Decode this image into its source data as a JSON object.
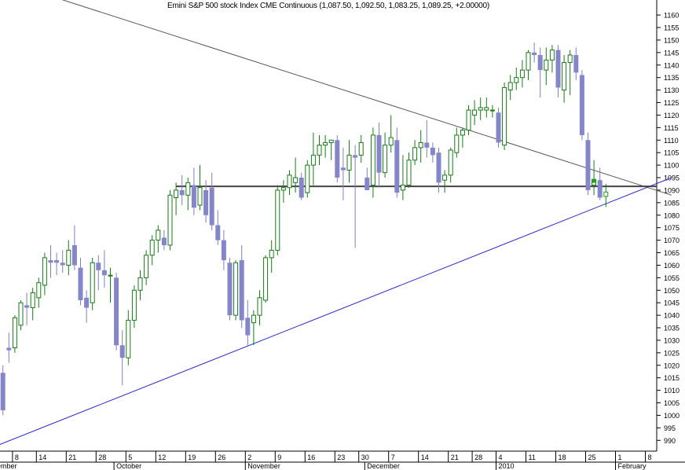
{
  "chart_data": {
    "type": "candlestick",
    "title": "Emini S&P 500 stock Index CME Continuous (1,087.50, 1,092.50, 1,083.25, 1,089.25, +2.00000)",
    "ylim": [
      986,
      1166
    ],
    "y_ticks": [
      990,
      995,
      1000,
      1005,
      1010,
      1015,
      1020,
      1025,
      1030,
      1035,
      1040,
      1045,
      1050,
      1055,
      1060,
      1065,
      1070,
      1075,
      1080,
      1085,
      1090,
      1095,
      1100,
      1105,
      1110,
      1115,
      1120,
      1125,
      1130,
      1135,
      1140,
      1145,
      1150,
      1155,
      1160
    ],
    "x_tick_labels": [
      {
        "label": "8",
        "i": 2
      },
      {
        "label": "14",
        "i": 6
      },
      {
        "label": "21",
        "i": 11
      },
      {
        "label": "28",
        "i": 16
      },
      {
        "label": "5",
        "i": 21
      },
      {
        "label": "12",
        "i": 26
      },
      {
        "label": "19",
        "i": 31
      },
      {
        "label": "26",
        "i": 36
      },
      {
        "label": "2",
        "i": 41
      },
      {
        "label": "9",
        "i": 46
      },
      {
        "label": "16",
        "i": 51
      },
      {
        "label": "23",
        "i": 56
      },
      {
        "label": "30",
        "i": 60
      },
      {
        "label": "7",
        "i": 65
      },
      {
        "label": "14",
        "i": 70
      },
      {
        "label": "21",
        "i": 75
      },
      {
        "label": "28",
        "i": 79
      },
      {
        "label": "4",
        "i": 83
      },
      {
        "label": "11",
        "i": 88
      },
      {
        "label": "18",
        "i": 93
      },
      {
        "label": "25",
        "i": 98
      },
      {
        "label": "1",
        "i": 103
      },
      {
        "label": "8",
        "i": 108
      }
    ],
    "month_labels": [
      {
        "label": "ember",
        "i": -1
      },
      {
        "label": "October",
        "i": 19
      },
      {
        "label": "November",
        "i": 41
      },
      {
        "label": "December",
        "i": 61
      },
      {
        "label": "2010",
        "i": 83
      },
      {
        "label": "February",
        "i": 103
      }
    ],
    "candles": [
      {
        "o": 1017,
        "h": 1020,
        "l": 1000,
        "c": 1002
      },
      {
        "o": 1027,
        "h": 1033,
        "l": 1021,
        "c": 1026
      },
      {
        "o": 1027,
        "h": 1040,
        "l": 1025,
        "c": 1039
      },
      {
        "o": 1036,
        "h": 1046,
        "l": 1034,
        "c": 1045
      },
      {
        "o": 1044,
        "h": 1049,
        "l": 1036,
        "c": 1043
      },
      {
        "o": 1043,
        "h": 1051,
        "l": 1038,
        "c": 1049
      },
      {
        "o": 1047,
        "h": 1055,
        "l": 1043,
        "c": 1053
      },
      {
        "o": 1052,
        "h": 1065,
        "l": 1048,
        "c": 1063
      },
      {
        "o": 1062,
        "h": 1068,
        "l": 1055,
        "c": 1061
      },
      {
        "o": 1062,
        "h": 1065,
        "l": 1056,
        "c": 1061
      },
      {
        "o": 1061,
        "h": 1066,
        "l": 1057,
        "c": 1060
      },
      {
        "o": 1060,
        "h": 1070,
        "l": 1056,
        "c": 1066
      },
      {
        "o": 1068,
        "h": 1076,
        "l": 1058,
        "c": 1060
      },
      {
        "o": 1059,
        "h": 1063,
        "l": 1044,
        "c": 1046
      },
      {
        "o": 1047,
        "h": 1050,
        "l": 1037,
        "c": 1043
      },
      {
        "o": 1045,
        "h": 1063,
        "l": 1042,
        "c": 1061
      },
      {
        "o": 1061,
        "h": 1064,
        "l": 1050,
        "c": 1058
      },
      {
        "o": 1058,
        "h": 1066,
        "l": 1051,
        "c": 1056
      },
      {
        "o": 1056,
        "h": 1059,
        "l": 1045,
        "c": 1056
      },
      {
        "o": 1055,
        "h": 1057,
        "l": 1026,
        "c": 1028
      },
      {
        "o": 1028,
        "h": 1034,
        "l": 1012,
        "c": 1023
      },
      {
        "o": 1023,
        "h": 1042,
        "l": 1020,
        "c": 1038
      },
      {
        "o": 1038,
        "h": 1052,
        "l": 1035,
        "c": 1050
      },
      {
        "o": 1050,
        "h": 1058,
        "l": 1046,
        "c": 1055
      },
      {
        "o": 1055,
        "h": 1066,
        "l": 1052,
        "c": 1064
      },
      {
        "o": 1064,
        "h": 1072,
        "l": 1060,
        "c": 1070
      },
      {
        "o": 1070,
        "h": 1076,
        "l": 1065,
        "c": 1074
      },
      {
        "o": 1071,
        "h": 1074,
        "l": 1066,
        "c": 1068
      },
      {
        "o": 1068,
        "h": 1090,
        "l": 1066,
        "c": 1088
      },
      {
        "o": 1087,
        "h": 1093,
        "l": 1080,
        "c": 1090
      },
      {
        "o": 1090,
        "h": 1096,
        "l": 1084,
        "c": 1088
      },
      {
        "o": 1088,
        "h": 1095,
        "l": 1082,
        "c": 1093
      },
      {
        "o": 1092,
        "h": 1099,
        "l": 1080,
        "c": 1083
      },
      {
        "o": 1084,
        "h": 1100,
        "l": 1082,
        "c": 1091
      },
      {
        "o": 1090,
        "h": 1094,
        "l": 1077,
        "c": 1080
      },
      {
        "o": 1091,
        "h": 1097,
        "l": 1074,
        "c": 1076
      },
      {
        "o": 1076,
        "h": 1082,
        "l": 1068,
        "c": 1070
      },
      {
        "o": 1070,
        "h": 1074,
        "l": 1058,
        "c": 1062
      },
      {
        "o": 1061,
        "h": 1063,
        "l": 1038,
        "c": 1040
      },
      {
        "o": 1040,
        "h": 1062,
        "l": 1038,
        "c": 1061
      },
      {
        "o": 1062,
        "h": 1068,
        "l": 1035,
        "c": 1038
      },
      {
        "o": 1039,
        "h": 1046,
        "l": 1028,
        "c": 1032
      },
      {
        "o": 1037,
        "h": 1042,
        "l": 1028,
        "c": 1040
      },
      {
        "o": 1040,
        "h": 1050,
        "l": 1036,
        "c": 1047
      },
      {
        "o": 1046,
        "h": 1064,
        "l": 1045,
        "c": 1063
      },
      {
        "o": 1063,
        "h": 1070,
        "l": 1057,
        "c": 1066
      },
      {
        "o": 1066,
        "h": 1092,
        "l": 1064,
        "c": 1090
      },
      {
        "o": 1090,
        "h": 1094,
        "l": 1085,
        "c": 1091
      },
      {
        "o": 1091,
        "h": 1098,
        "l": 1088,
        "c": 1096
      },
      {
        "o": 1093,
        "h": 1103,
        "l": 1089,
        "c": 1095
      },
      {
        "o": 1095,
        "h": 1097,
        "l": 1086,
        "c": 1087
      },
      {
        "o": 1089,
        "h": 1102,
        "l": 1087,
        "c": 1100
      },
      {
        "o": 1100,
        "h": 1113,
        "l": 1092,
        "c": 1104
      },
      {
        "o": 1104,
        "h": 1112,
        "l": 1100,
        "c": 1108
      },
      {
        "o": 1108,
        "h": 1112,
        "l": 1103,
        "c": 1109
      },
      {
        "o": 1109,
        "h": 1110,
        "l": 1102,
        "c": 1110
      },
      {
        "o": 1110,
        "h": 1112,
        "l": 1093,
        "c": 1095
      },
      {
        "o": 1099,
        "h": 1107,
        "l": 1086,
        "c": 1098
      },
      {
        "o": 1098,
        "h": 1110,
        "l": 1093,
        "c": 1104
      },
      {
        "o": 1104,
        "h": 1108,
        "l": 1067,
        "c": 1103
      },
      {
        "o": 1104,
        "h": 1112,
        "l": 1101,
        "c": 1109
      },
      {
        "o": 1095,
        "h": 1099,
        "l": 1090,
        "c": 1090
      },
      {
        "o": 1092,
        "h": 1115,
        "l": 1087,
        "c": 1112
      },
      {
        "o": 1112,
        "h": 1117,
        "l": 1091,
        "c": 1097
      },
      {
        "o": 1097,
        "h": 1113,
        "l": 1095,
        "c": 1108
      },
      {
        "o": 1108,
        "h": 1120,
        "l": 1105,
        "c": 1111
      },
      {
        "o": 1110,
        "h": 1115,
        "l": 1087,
        "c": 1089
      },
      {
        "o": 1090,
        "h": 1104,
        "l": 1086,
        "c": 1092
      },
      {
        "o": 1092,
        "h": 1105,
        "l": 1091,
        "c": 1102
      },
      {
        "o": 1102,
        "h": 1110,
        "l": 1100,
        "c": 1107
      },
      {
        "o": 1107,
        "h": 1114,
        "l": 1101,
        "c": 1109
      },
      {
        "o": 1109,
        "h": 1118,
        "l": 1103,
        "c": 1107
      },
      {
        "o": 1107,
        "h": 1109,
        "l": 1101,
        "c": 1104
      },
      {
        "o": 1105,
        "h": 1107,
        "l": 1089,
        "c": 1093
      },
      {
        "o": 1094,
        "h": 1098,
        "l": 1089,
        "c": 1096
      },
      {
        "o": 1096,
        "h": 1107,
        "l": 1093,
        "c": 1106
      },
      {
        "o": 1105,
        "h": 1115,
        "l": 1103,
        "c": 1112
      },
      {
        "o": 1112,
        "h": 1115,
        "l": 1107,
        "c": 1114
      },
      {
        "o": 1114,
        "h": 1124,
        "l": 1112,
        "c": 1122
      },
      {
        "o": 1120,
        "h": 1126,
        "l": 1116,
        "c": 1122
      },
      {
        "o": 1122,
        "h": 1127,
        "l": 1118,
        "c": 1123
      },
      {
        "o": 1122,
        "h": 1127,
        "l": 1119,
        "c": 1123
      },
      {
        "o": 1122,
        "h": 1124,
        "l": 1119,
        "c": 1122
      },
      {
        "o": 1121,
        "h": 1123,
        "l": 1107,
        "c": 1109
      },
      {
        "o": 1108,
        "h": 1133,
        "l": 1106,
        "c": 1131
      },
      {
        "o": 1130,
        "h": 1136,
        "l": 1126,
        "c": 1133
      },
      {
        "o": 1133,
        "h": 1139,
        "l": 1130,
        "c": 1135
      },
      {
        "o": 1135,
        "h": 1142,
        "l": 1131,
        "c": 1138
      },
      {
        "o": 1138,
        "h": 1146,
        "l": 1134,
        "c": 1145
      },
      {
        "o": 1145,
        "h": 1149,
        "l": 1141,
        "c": 1144
      },
      {
        "o": 1144,
        "h": 1147,
        "l": 1127,
        "c": 1138
      },
      {
        "o": 1138,
        "h": 1147,
        "l": 1132,
        "c": 1142
      },
      {
        "o": 1142,
        "h": 1148,
        "l": 1137,
        "c": 1146
      },
      {
        "o": 1146,
        "h": 1148,
        "l": 1127,
        "c": 1131
      },
      {
        "o": 1130,
        "h": 1144,
        "l": 1125,
        "c": 1141
      },
      {
        "o": 1141,
        "h": 1146,
        "l": 1128,
        "c": 1144
      },
      {
        "o": 1144,
        "h": 1147,
        "l": 1134,
        "c": 1137
      },
      {
        "o": 1136,
        "h": 1138,
        "l": 1110,
        "c": 1112
      },
      {
        "o": 1110,
        "h": 1113,
        "l": 1088,
        "c": 1090
      },
      {
        "o": 1092,
        "h": 1102,
        "l": 1088,
        "c": 1094
      },
      {
        "o": 1094,
        "h": 1099,
        "l": 1086,
        "c": 1087
      },
      {
        "o": 1087.5,
        "h": 1092.5,
        "l": 1083.25,
        "c": 1089.25
      }
    ],
    "horizontal_line": {
      "y": 1091.5
    },
    "trendlines": [
      {
        "name": "resistance",
        "i1": -3,
        "y1": 1176,
        "i2": 112,
        "y2": 1088,
        "color": "#555555"
      },
      {
        "name": "support",
        "i1": -3,
        "y1": 986,
        "i2": 112,
        "y2": 1095,
        "color": "#2b2bcc"
      }
    ],
    "colors": {
      "up": "#1a7a1a",
      "down": "#8585c9",
      "last": "#1fa01f",
      "axis": "#000000"
    },
    "grid": false
  }
}
